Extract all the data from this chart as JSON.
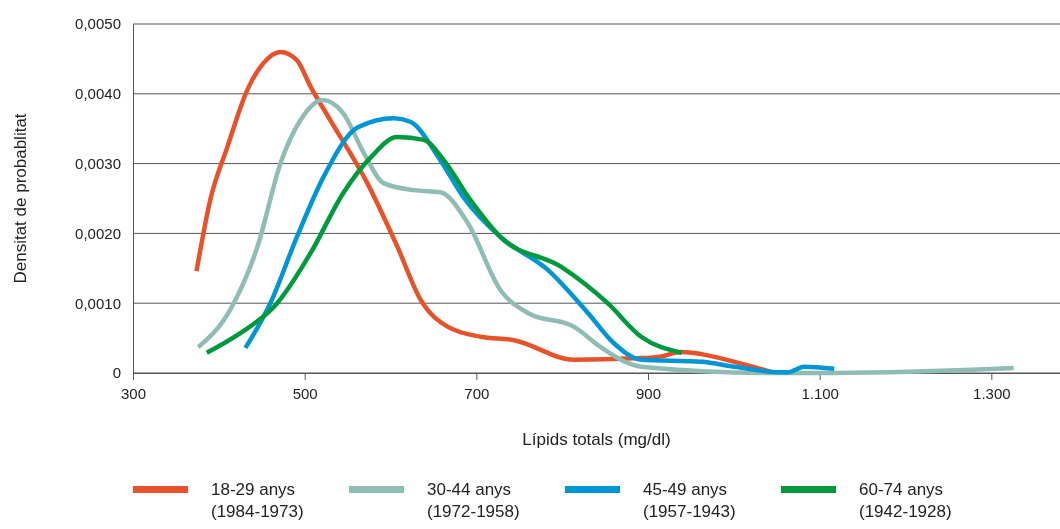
{
  "chart_data": {
    "type": "line",
    "xlabel": "Lípids totals (mg/dl)",
    "ylabel": "Densitat de probablitat",
    "xlim": [
      300,
      1380
    ],
    "ylim": [
      0,
      0.005
    ],
    "xticks": [
      300,
      500,
      700,
      900,
      {
        "value": 1100,
        "label": "1.100"
      },
      {
        "value": 1300,
        "label": "1.300"
      }
    ],
    "yticks": [
      0,
      {
        "value": 0.001,
        "label": "0,0010"
      },
      {
        "value": 0.002,
        "label": "0,0020"
      },
      {
        "value": 0.003,
        "label": "0,0030"
      },
      {
        "value": 0.004,
        "label": "0,0040"
      },
      {
        "value": 0.005,
        "label": "0,0050"
      }
    ],
    "grid": "y",
    "legend": "bottom",
    "marker": "none",
    "line_style": "solid",
    "series": [
      {
        "name": "18-29 anys\n(1984-1973)",
        "color": "#e8522a",
        "x": [
          374,
          390,
          410,
          433,
          452,
          472,
          491,
          507,
          530,
          573,
          608,
          635,
          667,
          705,
          744,
          814,
          884,
          912,
          939,
          1001,
          1047
        ],
        "values": [
          0.00146,
          0.00248,
          0.00324,
          0.00405,
          0.00444,
          0.0046,
          0.00448,
          0.0041,
          0.00362,
          0.00272,
          0.00181,
          0.00105,
          0.00066,
          0.00052,
          0.00047,
          0.00019,
          0.00021,
          0.00023,
          0.0003,
          0.00016,
          0
        ]
      },
      {
        "name": "30-44 anys\n(1972-1958)",
        "color": "#8fbcb3",
        "x": [
          376,
          413,
          445,
          472,
          495,
          521,
          545,
          569,
          592,
          627,
          658,
          690,
          728,
          760,
          814,
          845,
          877,
          892,
          1040,
          1117,
          1326
        ],
        "values": [
          0.00037,
          0.0009,
          0.00181,
          0.00301,
          0.00362,
          0.00391,
          0.00372,
          0.00315,
          0.00272,
          0.00262,
          0.00259,
          0.00215,
          0.00119,
          0.00086,
          0.00066,
          0.00037,
          0.00014,
          9e-05,
          0,
          0,
          7e-05
        ]
      },
      {
        "name": "45-49 anys\n(1957-1943)",
        "color": "#0096d6",
        "x": [
          431,
          460,
          491,
          522,
          562,
          604,
          623,
          658,
          685,
          728,
          783,
          830,
          860,
          892,
          962,
          1001,
          1055,
          1063,
          1082,
          1117
        ],
        "values": [
          0.00036,
          0.001,
          0.00195,
          0.00281,
          0.00352,
          0.00365,
          0.0036,
          0.00305,
          0.00252,
          0.00195,
          0.00148,
          0.00086,
          0.00043,
          0.00019,
          0.00016,
          9e-05,
          1e-05,
          1e-05,
          9e-05,
          6e-05
        ]
      },
      {
        "name": "60-74 anys\n(1942-1928)",
        "color": "#009a3d",
        "x": [
          386,
          425,
          468,
          507,
          545,
          577,
          608,
          639,
          662,
          693,
          728,
          799,
          853,
          892,
          939
        ],
        "values": [
          0.00029,
          0.00057,
          0.001,
          0.00172,
          0.00258,
          0.00309,
          0.00338,
          0.00334,
          0.00305,
          0.00248,
          0.00195,
          0.00152,
          0.001,
          0.00052,
          0.00029
        ]
      }
    ]
  }
}
